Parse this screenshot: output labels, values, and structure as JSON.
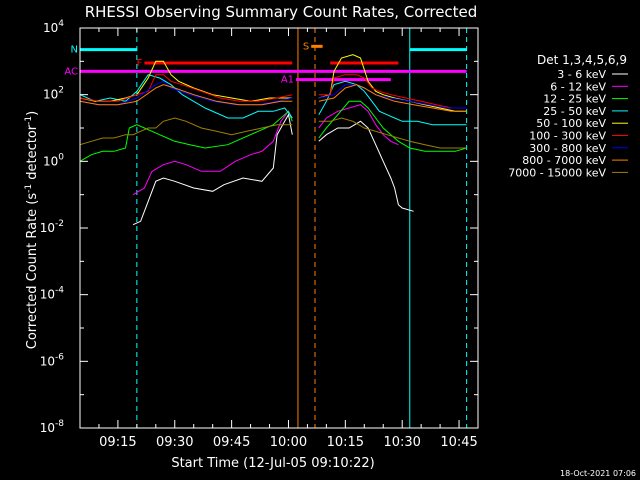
{
  "chart_data": {
    "type": "line",
    "title": "RHESSI Observing Summary Count Rates, Corrected",
    "xlabel": "Start Time (12-Jul-05 09:10:22)",
    "ylabel_main": "Corrected Count Rate (s",
    "ylabel_sup1": "-1",
    "ylabel_mid": " detector",
    "ylabel_sup2": "-1",
    "ylabel_end": ")",
    "y_scale": "log",
    "ylim": [
      1e-08,
      10000.0
    ],
    "xlim_min": [
      5,
      50
    ],
    "x_tick_labels": [
      "09:15",
      "09:30",
      "09:45",
      "10:00",
      "10:15",
      "10:30",
      "10:45"
    ],
    "x_tick_min": [
      15,
      30,
      45,
      60,
      75,
      90,
      105
    ],
    "y_tick_exponents": [
      4,
      2,
      0,
      -2,
      -4,
      -6,
      -8
    ],
    "legend_title": "Det 1,3,4,5,6,9",
    "timestamp": "18-Oct-2021 07:06",
    "series": [
      {
        "name": "3 - 6 keV",
        "color": "#ffffff",
        "points": [
          [
            19,
            -1.9
          ],
          [
            21,
            -1.8
          ],
          [
            23,
            -1.2
          ],
          [
            25,
            -0.6
          ],
          [
            27,
            -0.5
          ],
          [
            30,
            -0.6
          ],
          [
            35,
            -0.8
          ],
          [
            40,
            -0.9
          ],
          [
            43,
            -0.7
          ],
          [
            48,
            -0.5
          ],
          [
            53,
            -0.6
          ],
          [
            56,
            -0.2
          ],
          [
            57,
            0.8
          ],
          [
            59,
            1.2
          ],
          [
            60,
            1.4
          ],
          [
            61,
            0.8
          ]
        ],
        "points2": [
          [
            68,
            0.6
          ],
          [
            70,
            0.8
          ],
          [
            73,
            1.0
          ],
          [
            76,
            1.0
          ],
          [
            79,
            1.2
          ],
          [
            81,
            1.0
          ],
          [
            83,
            0.5
          ],
          [
            85,
            0.0
          ],
          [
            87,
            -0.5
          ],
          [
            88,
            -0.8
          ],
          [
            89,
            -1.3
          ],
          [
            90,
            -1.4
          ],
          [
            93,
            -1.5
          ]
        ]
      },
      {
        "name": "6 - 12 keV",
        "color": "#ff00ff",
        "points": [
          [
            19,
            -1.0
          ],
          [
            22,
            -0.8
          ],
          [
            24,
            -0.3
          ],
          [
            27,
            -0.1
          ],
          [
            30,
            0.0
          ],
          [
            33,
            -0.1
          ],
          [
            37,
            -0.3
          ],
          [
            42,
            -0.3
          ],
          [
            46,
            0.0
          ],
          [
            50,
            0.2
          ],
          [
            53,
            0.3
          ],
          [
            56,
            0.6
          ],
          [
            58,
            1.2
          ],
          [
            60,
            1.5
          ],
          [
            61,
            1.3
          ]
        ],
        "points2": [
          [
            68,
            1.0
          ],
          [
            70,
            1.3
          ],
          [
            73,
            1.5
          ],
          [
            76,
            1.6
          ],
          [
            79,
            1.7
          ],
          [
            81,
            1.5
          ],
          [
            83,
            1.1
          ],
          [
            85,
            0.8
          ],
          [
            87,
            0.6
          ],
          [
            89,
            0.5
          ]
        ]
      },
      {
        "name": "12 - 25 keV",
        "color": "#00ff00",
        "points": [
          [
            5,
            0.0
          ],
          [
            8,
            0.2
          ],
          [
            11,
            0.3
          ],
          [
            14,
            0.3
          ],
          [
            17,
            0.4
          ],
          [
            18,
            1.0
          ],
          [
            20,
            1.1
          ],
          [
            22,
            1.0
          ],
          [
            24,
            0.9
          ],
          [
            26,
            0.8
          ],
          [
            28,
            0.7
          ],
          [
            30,
            0.6
          ],
          [
            34,
            0.5
          ],
          [
            38,
            0.4
          ],
          [
            44,
            0.5
          ],
          [
            52,
            0.9
          ],
          [
            56,
            1.1
          ],
          [
            60,
            1.5
          ],
          [
            61,
            1.2
          ]
        ],
        "points2": [
          [
            68,
            0.7
          ],
          [
            70,
            1.0
          ],
          [
            73,
            1.4
          ],
          [
            76,
            1.8
          ],
          [
            79,
            1.8
          ],
          [
            81,
            1.6
          ],
          [
            83,
            1.3
          ],
          [
            85,
            1.0
          ],
          [
            87,
            0.8
          ],
          [
            89,
            0.6
          ],
          [
            92,
            0.4
          ],
          [
            96,
            0.3
          ],
          [
            100,
            0.3
          ],
          [
            104,
            0.3
          ],
          [
            107,
            0.4
          ]
        ]
      },
      {
        "name": "25 - 50 keV",
        "color": "#00ffff",
        "points": [
          [
            5,
            2.0
          ],
          [
            9,
            1.8
          ],
          [
            13,
            1.9
          ],
          [
            17,
            1.8
          ],
          [
            20,
            2.1
          ],
          [
            23,
            2.6
          ],
          [
            26,
            2.5
          ],
          [
            29,
            2.3
          ],
          [
            32,
            2.0
          ],
          [
            38,
            1.6
          ],
          [
            44,
            1.3
          ],
          [
            48,
            1.3
          ],
          [
            52,
            1.5
          ],
          [
            56,
            1.5
          ],
          [
            59,
            1.6
          ],
          [
            61,
            1.3
          ]
        ],
        "points2": [
          [
            68,
            1.4
          ],
          [
            70,
            1.8
          ],
          [
            72,
            2.3
          ],
          [
            75,
            2.4
          ],
          [
            78,
            2.3
          ],
          [
            80,
            2.1
          ],
          [
            82,
            1.8
          ],
          [
            84,
            1.5
          ],
          [
            86,
            1.4
          ],
          [
            88,
            1.3
          ],
          [
            90,
            1.2
          ],
          [
            94,
            1.2
          ],
          [
            98,
            1.1
          ],
          [
            102,
            1.1
          ],
          [
            107,
            1.1
          ]
        ]
      },
      {
        "name": "50 - 100 keV",
        "color": "#ffff00",
        "points": [
          [
            5,
            1.9
          ],
          [
            9,
            1.8
          ],
          [
            13,
            1.8
          ],
          [
            17,
            1.9
          ],
          [
            20,
            2.0
          ],
          [
            23,
            2.5
          ],
          [
            25,
            3.0
          ],
          [
            27,
            3.0
          ],
          [
            29,
            2.6
          ],
          [
            31,
            2.4
          ],
          [
            35,
            2.2
          ],
          [
            40,
            2.0
          ],
          [
            45,
            1.9
          ],
          [
            50,
            1.8
          ],
          [
            55,
            1.9
          ],
          [
            59,
            1.9
          ],
          [
            61,
            1.9
          ]
        ],
        "points2": [
          [
            68,
            1.9
          ],
          [
            71,
            2.0
          ],
          [
            72,
            2.7
          ],
          [
            74,
            3.1
          ],
          [
            77,
            3.2
          ],
          [
            79,
            3.1
          ],
          [
            81,
            2.4
          ],
          [
            83,
            2.1
          ],
          [
            85,
            2.0
          ],
          [
            88,
            1.9
          ],
          [
            92,
            1.8
          ],
          [
            96,
            1.7
          ],
          [
            100,
            1.6
          ],
          [
            104,
            1.5
          ],
          [
            107,
            1.5
          ]
        ]
      },
      {
        "name": "100 - 300 keV",
        "color": "#ff0000",
        "points": [
          [
            5,
            1.9
          ],
          [
            10,
            1.8
          ],
          [
            15,
            1.8
          ],
          [
            20,
            2.0
          ],
          [
            23,
            2.1
          ],
          [
            25,
            2.6
          ],
          [
            27,
            2.6
          ],
          [
            29,
            2.4
          ],
          [
            32,
            2.3
          ],
          [
            37,
            2.1
          ],
          [
            42,
            1.9
          ],
          [
            47,
            1.8
          ],
          [
            52,
            1.8
          ],
          [
            57,
            1.9
          ],
          [
            61,
            2.0
          ]
        ],
        "points2": [
          [
            68,
            2.0
          ],
          [
            71,
            2.0
          ],
          [
            72,
            2.5
          ],
          [
            75,
            2.6
          ],
          [
            78,
            2.6
          ],
          [
            80,
            2.5
          ],
          [
            82,
            2.2
          ],
          [
            84,
            2.1
          ],
          [
            87,
            2.0
          ],
          [
            91,
            1.9
          ],
          [
            95,
            1.8
          ],
          [
            99,
            1.7
          ],
          [
            103,
            1.6
          ],
          [
            107,
            1.6
          ]
        ]
      },
      {
        "name": "300 - 800 keV",
        "color": "#0000ff",
        "points": [
          [
            5,
            1.8
          ],
          [
            10,
            1.7
          ],
          [
            15,
            1.7
          ],
          [
            20,
            1.9
          ],
          [
            25,
            2.3
          ],
          [
            27,
            2.4
          ],
          [
            29,
            2.2
          ],
          [
            34,
            2.0
          ],
          [
            40,
            1.8
          ],
          [
            46,
            1.7
          ],
          [
            52,
            1.7
          ],
          [
            57,
            1.8
          ],
          [
            61,
            1.9
          ]
        ],
        "points2": [
          [
            68,
            1.9
          ],
          [
            72,
            2.0
          ],
          [
            75,
            2.3
          ],
          [
            78,
            2.3
          ],
          [
            80,
            2.2
          ],
          [
            83,
            2.0
          ],
          [
            87,
            1.9
          ],
          [
            92,
            1.8
          ],
          [
            97,
            1.7
          ],
          [
            102,
            1.6
          ],
          [
            107,
            1.6
          ]
        ]
      },
      {
        "name": "800 - 7000 keV",
        "color": "#ff8000",
        "points": [
          [
            5,
            1.8
          ],
          [
            10,
            1.7
          ],
          [
            15,
            1.7
          ],
          [
            20,
            1.8
          ],
          [
            25,
            2.2
          ],
          [
            27,
            2.3
          ],
          [
            30,
            2.2
          ],
          [
            35,
            2.0
          ],
          [
            41,
            1.8
          ],
          [
            47,
            1.7
          ],
          [
            53,
            1.7
          ],
          [
            58,
            1.8
          ],
          [
            61,
            1.8
          ]
        ],
        "points2": [
          [
            68,
            1.8
          ],
          [
            72,
            1.9
          ],
          [
            75,
            2.2
          ],
          [
            78,
            2.3
          ],
          [
            80,
            2.2
          ],
          [
            83,
            2.0
          ],
          [
            88,
            1.8
          ],
          [
            93,
            1.7
          ],
          [
            98,
            1.6
          ],
          [
            103,
            1.5
          ],
          [
            107,
            1.5
          ]
        ]
      },
      {
        "name": "7000 - 15000 keV",
        "color": "#a08000",
        "points": [
          [
            5,
            0.5
          ],
          [
            8,
            0.6
          ],
          [
            11,
            0.7
          ],
          [
            14,
            0.7
          ],
          [
            17,
            0.8
          ],
          [
            19,
            0.8
          ],
          [
            21,
            0.9
          ],
          [
            23,
            1.0
          ],
          [
            25,
            1.0
          ],
          [
            27,
            1.2
          ],
          [
            30,
            1.3
          ],
          [
            33,
            1.2
          ],
          [
            37,
            1.0
          ],
          [
            41,
            0.9
          ],
          [
            45,
            0.8
          ],
          [
            49,
            0.9
          ],
          [
            53,
            1.0
          ],
          [
            57,
            1.1
          ],
          [
            61,
            1.1
          ]
        ],
        "points2": [
          [
            68,
            1.2
          ],
          [
            71,
            1.2
          ],
          [
            74,
            1.3
          ],
          [
            77,
            1.2
          ],
          [
            80,
            1.0
          ],
          [
            83,
            0.9
          ],
          [
            86,
            0.8
          ],
          [
            89,
            0.7
          ],
          [
            92,
            0.6
          ],
          [
            96,
            0.5
          ],
          [
            100,
            0.4
          ],
          [
            104,
            0.4
          ],
          [
            107,
            0.4
          ]
        ]
      }
    ],
    "annotations": [
      {
        "label": "N",
        "color": "#00ffff",
        "x1": 5,
        "x2": 20,
        "y": 3.35
      },
      {
        "label": "",
        "color": "#00ffff",
        "x1": 92,
        "x2": 107,
        "y": 3.35
      },
      {
        "label": "F",
        "color": "#ff0000",
        "x1": 22,
        "x2": 61,
        "y": 2.95
      },
      {
        "label": "",
        "color": "#ff0000",
        "x1": 71,
        "x2": 89,
        "y": 2.95
      },
      {
        "label": "AC",
        "color": "#ff00ff",
        "x1": 5,
        "x2": 107,
        "y": 2.7
      },
      {
        "label": "A1",
        "color": "#ff00ff",
        "x1": 62,
        "x2": 87,
        "y": 2.45
      },
      {
        "label": "S",
        "color": "#ff8000",
        "x1": 66,
        "x2": 69,
        "y": 3.45
      }
    ],
    "vlines": [
      {
        "x": 62.5,
        "color": "#ff8000",
        "dashed": false
      },
      {
        "x": 67,
        "color": "#ff8000",
        "dashed": true
      },
      {
        "x": 20,
        "color": "#00ffff",
        "dashed": true
      },
      {
        "x": 92,
        "color": "#00ffff",
        "dashed": false
      },
      {
        "x": 107,
        "color": "#00ffff",
        "dashed": true
      }
    ]
  }
}
